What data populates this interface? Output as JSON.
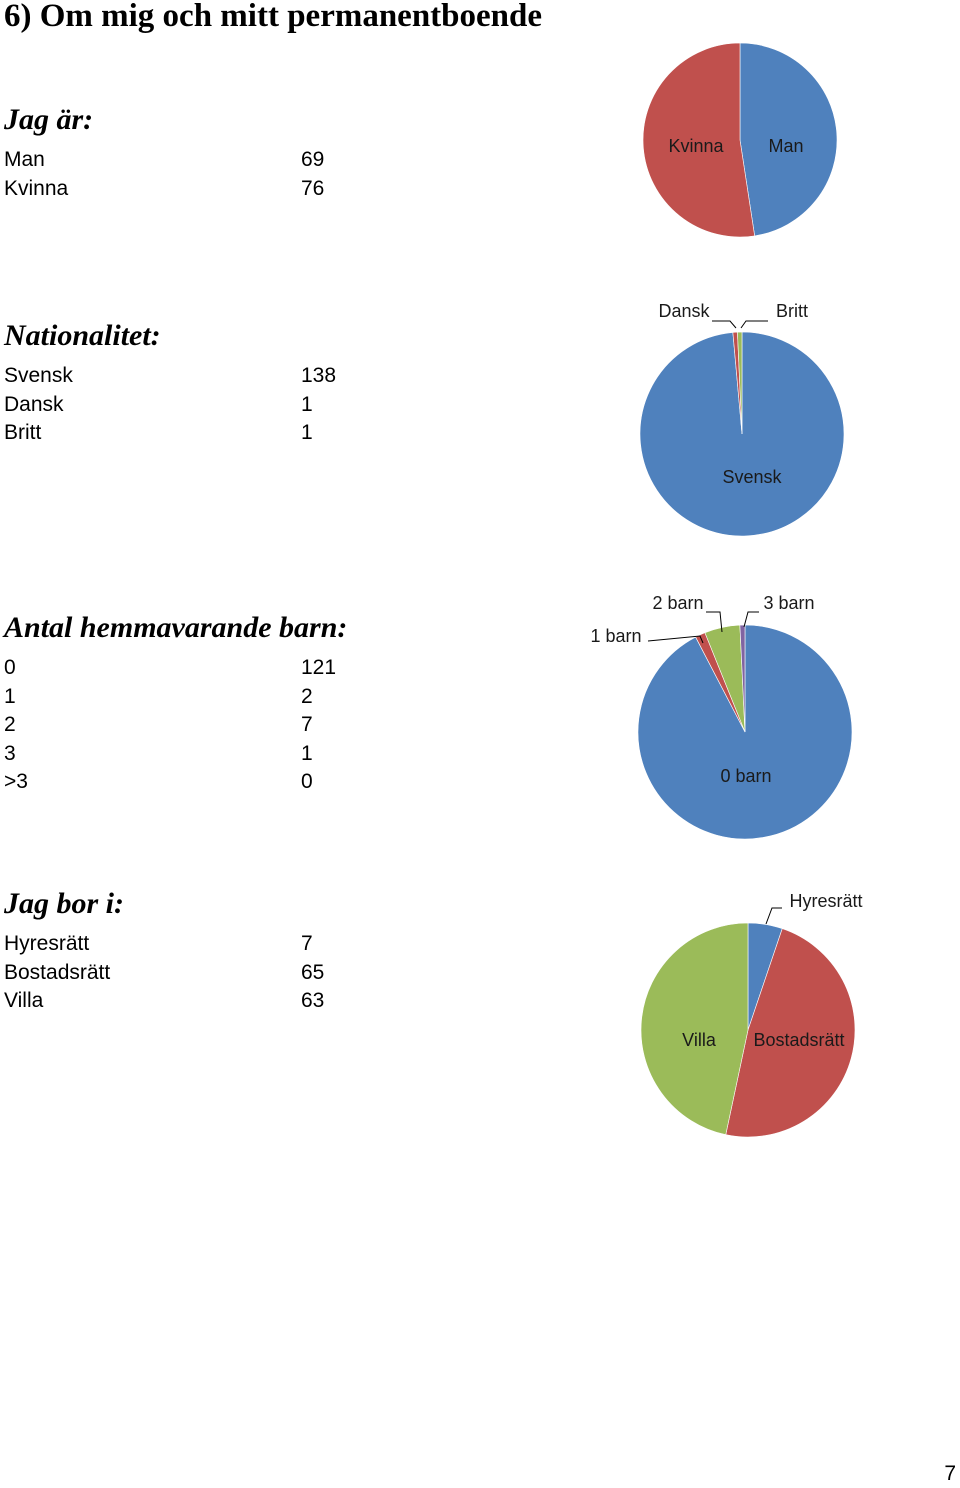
{
  "page": {
    "title": "6) Om mig och mitt permanentboende",
    "number": "7"
  },
  "colors": {
    "blue": "#4f81bd",
    "red": "#c0504d",
    "green": "#9bbb59",
    "purple": "#8064a2"
  },
  "chart_data": [
    {
      "type": "pie",
      "title": "Jag är:",
      "categories": [
        "Man",
        "Kvinna"
      ],
      "values": [
        69,
        76
      ],
      "series_colors": [
        "#4f81bd",
        "#c0504d"
      ]
    },
    {
      "type": "pie",
      "title": "Nationalitet:",
      "categories": [
        "Svensk",
        "Dansk",
        "Britt"
      ],
      "values": [
        138,
        1,
        1
      ],
      "series_colors": [
        "#4f81bd",
        "#c0504d",
        "#9bbb59"
      ]
    },
    {
      "type": "pie",
      "title": "Antal hemmavarande barn:",
      "categories": [
        "0",
        "1",
        "2",
        "3",
        ">3"
      ],
      "values": [
        121,
        2,
        7,
        1,
        0
      ],
      "slice_labels": [
        "0 barn",
        "1 barn",
        "2 barn",
        "3 barn",
        ""
      ],
      "series_colors": [
        "#4f81bd",
        "#c0504d",
        "#9bbb59",
        "#8064a2",
        "#4bacc6"
      ]
    },
    {
      "type": "pie",
      "title": "Jag bor i:",
      "categories": [
        "Hyresrätt",
        "Bostadsrätt",
        "Villa"
      ],
      "values": [
        7,
        65,
        63
      ],
      "series_colors": [
        "#4f81bd",
        "#c0504d",
        "#9bbb59"
      ]
    }
  ]
}
